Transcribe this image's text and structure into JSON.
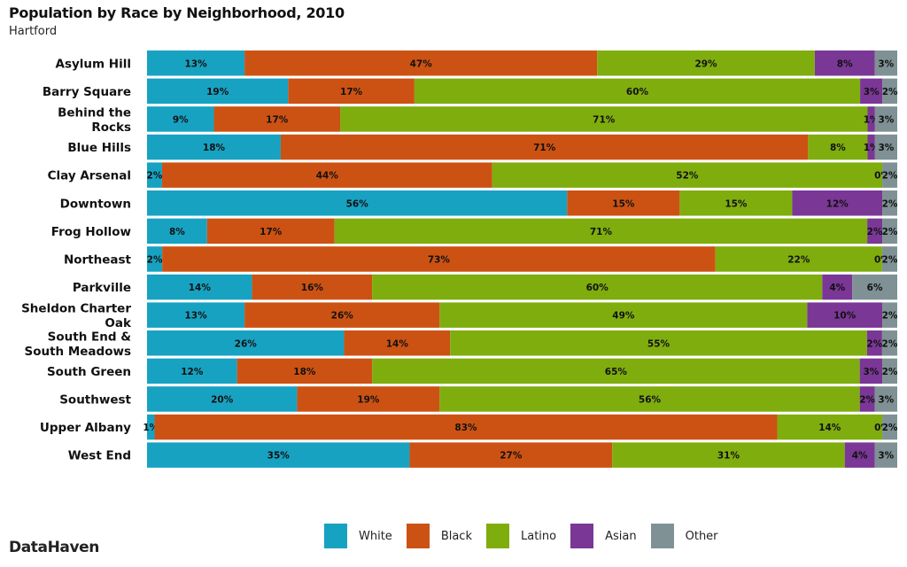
{
  "header": {
    "title": "Population by Race by Neighborhood, 2010",
    "subtitle": "Hartford"
  },
  "footer": {
    "brand": "DataHaven"
  },
  "chart_data": {
    "type": "bar",
    "orientation": "horizontal",
    "stacked": true,
    "normalized": true,
    "title": "Population by Race by Neighborhood, 2010",
    "subtitle": "Hartford",
    "xlabel": "",
    "ylabel": "",
    "xlim": [
      0,
      100
    ],
    "grid": false,
    "legend_position": "bottom",
    "categories": [
      [
        "Asylum Hill"
      ],
      [
        "Barry Square"
      ],
      [
        "Behind the",
        "Rocks"
      ],
      [
        "Blue Hills"
      ],
      [
        "Clay Arsenal"
      ],
      [
        "Downtown"
      ],
      [
        "Frog Hollow"
      ],
      [
        "Northeast"
      ],
      [
        "Parkville"
      ],
      [
        "Sheldon Charter",
        "Oak"
      ],
      [
        "South End &",
        "South Meadows"
      ],
      [
        "South Green"
      ],
      [
        "Southwest"
      ],
      [
        "Upper Albany"
      ],
      [
        "West End"
      ]
    ],
    "series": [
      {
        "name": "White",
        "color": "#17a2c2",
        "values": [
          13,
          19,
          9,
          18,
          2,
          56,
          8,
          2,
          14,
          13,
          26,
          12,
          20,
          1,
          35
        ]
      },
      {
        "name": "Black",
        "color": "#cc5213",
        "values": [
          47,
          17,
          17,
          71,
          44,
          15,
          17,
          73,
          16,
          26,
          14,
          18,
          19,
          83,
          27
        ]
      },
      {
        "name": "Latino",
        "color": "#7fad0e",
        "values": [
          29,
          60,
          71,
          8,
          52,
          15,
          71,
          22,
          60,
          49,
          55,
          65,
          56,
          14,
          31
        ]
      },
      {
        "name": "Asian",
        "color": "#7a3795",
        "values": [
          8,
          3,
          1,
          1,
          0,
          12,
          2,
          0,
          4,
          10,
          2,
          3,
          2,
          0,
          4
        ]
      },
      {
        "name": "Other",
        "color": "#7f9194",
        "values": [
          3,
          2,
          3,
          3,
          2,
          2,
          2,
          2,
          6,
          2,
          2,
          2,
          3,
          2,
          3
        ]
      }
    ],
    "value_format": "{v}%"
  }
}
